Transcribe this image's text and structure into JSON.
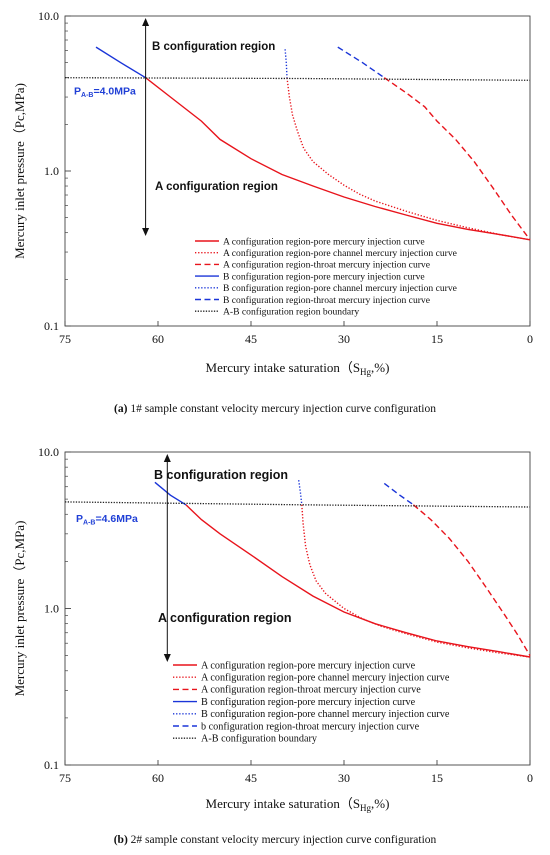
{
  "captions": [
    {
      "tag": "(a)",
      "text": " 1# sample constant velocity mercury injection curve configuration"
    },
    {
      "tag": "(b)",
      "text": " 2# sample constant velocity mercury injection curve configuration"
    }
  ],
  "chart_data": [
    {
      "type": "line",
      "xlabel": "Mercury intake saturation（S",
      "xlabel_sub": "Hg",
      "xlabel_suffix": ",%)",
      "ylabel": "Mercury inlet pressure（Pc,MPa)",
      "xlim": [
        75,
        0
      ],
      "x_ticks": [
        75,
        60,
        45,
        30,
        15,
        0
      ],
      "ylim": [
        0.1,
        10
      ],
      "y_scale": "log",
      "y_ticks": [
        {
          "v": 10,
          "label": "10.0"
        },
        {
          "v": 1,
          "label": "1.0"
        },
        {
          "v": 0.1,
          "label": "0.1"
        }
      ],
      "pab_prefix": "P",
      "pab_sub": "A-B",
      "pab_value": "=4.0MPa",
      "region_top": "B configuration region",
      "region_bottom": "A configuration region",
      "boundary_y": 4.0,
      "arrow_x": 62,
      "legend_placement": "bottom-right",
      "series": [
        {
          "name": "A configuration region-pore mercury injection curve",
          "color": "#e8141c",
          "dash": "solid",
          "points": [
            [
              62,
              4.0
            ],
            [
              58,
              3.0
            ],
            [
              53,
              2.1
            ],
            [
              50,
              1.6
            ],
            [
              45,
              1.2
            ],
            [
              40,
              0.95
            ],
            [
              35,
              0.8
            ],
            [
              30,
              0.68
            ],
            [
              25,
              0.59
            ],
            [
              20,
              0.52
            ],
            [
              15,
              0.46
            ],
            [
              10,
              0.42
            ],
            [
              5,
              0.39
            ],
            [
              0,
              0.36
            ]
          ]
        },
        {
          "name": "A configuration region-pore channel mercury injection curve",
          "color": "#e8141c",
          "dash": "dotted",
          "points": [
            [
              39.2,
              4.0
            ],
            [
              38.8,
              3.0
            ],
            [
              38.3,
              2.3
            ],
            [
              37.5,
              1.8
            ],
            [
              36.5,
              1.4
            ],
            [
              35,
              1.15
            ],
            [
              32.5,
              0.95
            ],
            [
              30,
              0.81
            ],
            [
              27.5,
              0.71
            ],
            [
              25,
              0.64
            ],
            [
              20,
              0.55
            ],
            [
              15,
              0.48
            ],
            [
              10,
              0.43
            ],
            [
              5,
              0.39
            ],
            [
              0,
              0.36
            ]
          ]
        },
        {
          "name": "A configuration region-throat mercury injection curve",
          "color": "#e8141c",
          "dash": "dashed",
          "points": [
            [
              23.5,
              4.0
            ],
            [
              20,
              3.2
            ],
            [
              17,
              2.6
            ],
            [
              15,
              2.1
            ],
            [
              12,
              1.6
            ],
            [
              9,
              1.15
            ],
            [
              6,
              0.78
            ],
            [
              3,
              0.52
            ],
            [
              0,
              0.36
            ]
          ]
        },
        {
          "name": "B configuration region-pore mercury injection curve",
          "color": "#1a35d8",
          "dash": "solid",
          "points": [
            [
              70,
              6.3
            ],
            [
              66,
              5.0
            ],
            [
              62,
              4.0
            ]
          ]
        },
        {
          "name": "B configuration region-pore channel mercury injection curve",
          "color": "#1a35d8",
          "dash": "dotted",
          "points": [
            [
              39.5,
              6.1
            ],
            [
              39.3,
              5.0
            ],
            [
              39.2,
              4.0
            ]
          ]
        },
        {
          "name": "B configuration region-throat mercury injection curve",
          "color": "#1a35d8",
          "dash": "dashed",
          "points": [
            [
              31,
              6.3
            ],
            [
              27,
              5.0
            ],
            [
              23.5,
              4.0
            ]
          ]
        },
        {
          "name": "A-B configuration region boundary",
          "color": "#222222",
          "dash": "boundary",
          "points": [
            [
              75,
              4.0
            ],
            [
              37,
              3.95
            ],
            [
              0,
              3.85
            ]
          ]
        }
      ]
    },
    {
      "type": "line",
      "xlabel": "Mercury intake saturation（S",
      "xlabel_sub": "Hg",
      "xlabel_suffix": ",%)",
      "ylabel": "Mercury inlet pressure（Pc,MPa)",
      "xlim": [
        75,
        0
      ],
      "x_ticks": [
        75,
        60,
        45,
        30,
        15,
        0
      ],
      "ylim": [
        0.1,
        10
      ],
      "y_scale": "log",
      "y_ticks": [
        {
          "v": 10,
          "label": "10.0"
        },
        {
          "v": 1,
          "label": "1.0"
        },
        {
          "v": 0.1,
          "label": "0.1"
        }
      ],
      "pab_prefix": "P",
      "pab_sub": "A-B",
      "pab_value": "=4.6MPa",
      "region_top": "B configuration region",
      "region_bottom": "A configuration region",
      "boundary_y": 4.6,
      "arrow_x": 58.5,
      "legend_placement": "bottom-right",
      "series": [
        {
          "name": "A configuration region-pore mercury injection curve",
          "color": "#e8141c",
          "dash": "solid",
          "points": [
            [
              55.5,
              4.6
            ],
            [
              53,
              3.7
            ],
            [
              50,
              3.0
            ],
            [
              45,
              2.2
            ],
            [
              40,
              1.6
            ],
            [
              35,
              1.2
            ],
            [
              30,
              0.95
            ],
            [
              25,
              0.8
            ],
            [
              20,
              0.7
            ],
            [
              15,
              0.62
            ],
            [
              10,
              0.57
            ],
            [
              5,
              0.53
            ],
            [
              0,
              0.49
            ]
          ]
        },
        {
          "name": "A configuration region-pore channel mercury injection curve",
          "color": "#e8141c",
          "dash": "dotted",
          "points": [
            [
              36.8,
              4.6
            ],
            [
              36.6,
              3.5
            ],
            [
              36.2,
              2.5
            ],
            [
              35.5,
              1.9
            ],
            [
              34.5,
              1.5
            ],
            [
              33,
              1.25
            ],
            [
              30,
              1.0
            ],
            [
              27,
              0.86
            ],
            [
              24,
              0.77
            ],
            [
              20,
              0.69
            ],
            [
              15,
              0.61
            ],
            [
              10,
              0.56
            ],
            [
              5,
              0.52
            ],
            [
              0,
              0.49
            ]
          ]
        },
        {
          "name": "A configuration region-throat mercury injection curve",
          "color": "#e8141c",
          "dash": "dashed",
          "points": [
            [
              18.8,
              4.6
            ],
            [
              16,
              3.7
            ],
            [
              13,
              2.8
            ],
            [
              10,
              2.0
            ],
            [
              7,
              1.35
            ],
            [
              4,
              0.9
            ],
            [
              2,
              0.68
            ],
            [
              0,
              0.5
            ]
          ]
        },
        {
          "name": "B configuration region-pore mercury injection curve",
          "color": "#1a35d8",
          "dash": "solid",
          "points": [
            [
              60.5,
              6.4
            ],
            [
              58,
              5.3
            ],
            [
              55.5,
              4.6
            ]
          ]
        },
        {
          "name": "B configuration region-pore channel mercury injection curve",
          "color": "#1a35d8",
          "dash": "dotted",
          "points": [
            [
              37.3,
              6.6
            ],
            [
              37,
              5.4
            ],
            [
              36.8,
              4.6
            ]
          ]
        },
        {
          "name": "b configuration region-throat mercury injection curve",
          "color": "#1a35d8",
          "dash": "dashed",
          "points": [
            [
              23.5,
              6.3
            ],
            [
              21,
              5.3
            ],
            [
              18.8,
              4.6
            ]
          ]
        },
        {
          "name": "A-B configuration boundary",
          "color": "#222222",
          "dash": "boundary",
          "points": [
            [
              75,
              4.8
            ],
            [
              37,
              4.6
            ],
            [
              0,
              4.45
            ]
          ]
        }
      ]
    }
  ]
}
